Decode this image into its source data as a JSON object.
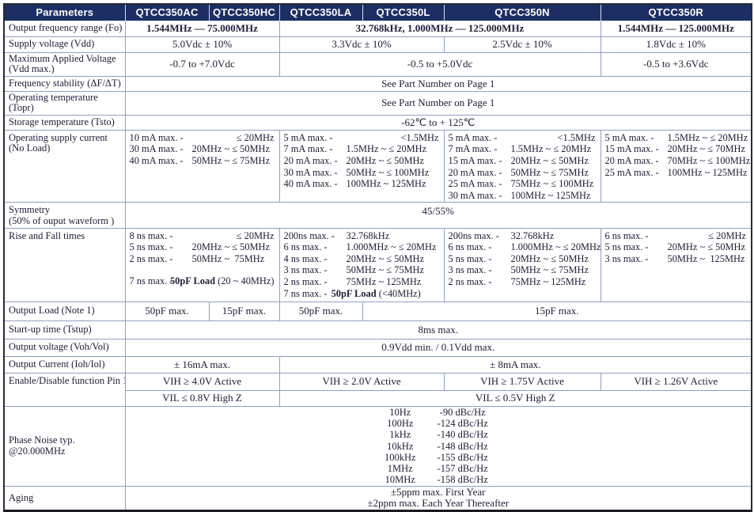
{
  "colors": {
    "header_bg": "#1c2e63",
    "header_text": "#ffffff",
    "grid_line": "#8fa0c4",
    "outer_border": "#2a2a33",
    "body_text": "#20203a"
  },
  "table": {
    "header": {
      "params": "Parameters",
      "cols": [
        "QTCC350AC",
        "QTCC350HC",
        "QTCC350LA",
        "QTCC350L",
        "QTCC350N",
        "QTCC350R"
      ]
    },
    "freq": {
      "label": "Output frequency range (Fo)",
      "v1": "1.544MHz — 75.000MHz",
      "v2": "32.768kHz, 1.000MHz — 125.000MHz",
      "v3": "1.544MHz — 125.000MHz"
    },
    "vdd": {
      "label": "Supply voltage (Vdd)",
      "v1": "5.0Vdc ± 10%",
      "v2": "3.3Vdc ± 10%",
      "v3": "2.5Vdc ± 10%",
      "v4": "1.8Vdc ± 10%"
    },
    "vmax": {
      "label1": "Maximum Applied Voltage",
      "label2": "(Vdd max.)",
      "v1": "-0.7 to +7.0Vdc",
      "v2": "-0.5 to +5.0Vdc",
      "v3": "-0.5 to +3.6Vdc"
    },
    "stab": {
      "label": "Frequency stability (ΔF/ΔT)",
      "v": "See Part Number on Page 1"
    },
    "topr": {
      "label": "Operating temperature (Topr)",
      "v": "See Part Number on Page 1"
    },
    "tsto": {
      "label": "Storage temperature (Tsto)",
      "v": "-62℃ to + 125℃"
    },
    "cur": {
      "label1": "Operating supply current",
      "label2": "(No Load)",
      "ac_hc": [
        {
          "a": "10 mA max. -",
          "r": "≤ 20MHz",
          "ra": true
        },
        {
          "a": "30 mA max. -",
          "r": "20MHz ~ ≤ 50MHz"
        },
        {
          "a": "40 mA max. -",
          "r": "50MHz ~ ≤ 75MHz"
        }
      ],
      "la_l": [
        {
          "a": "5 mA max. -",
          "r": "<1.5MHz",
          "ra": true
        },
        {
          "a": "7 mA max. -",
          "r": "1.5MHz ~ ≤ 20MHz"
        },
        {
          "a": "20 mA max. -",
          "r": "20MHz ~ ≤ 50MHz"
        },
        {
          "a": "30 mA max. -",
          "r": "50MHz ~ ≤ 100MHz"
        },
        {
          "a": "40 mA max. -",
          "r": "100MHz ~ 125MHz"
        }
      ],
      "n": [
        {
          "a": "5 mA max. -",
          "r": "<1.5MHz",
          "ra": true
        },
        {
          "a": "7 mA max. -",
          "r": "1.5MHz ~ ≤ 20MHz"
        },
        {
          "a": "15 mA max. -",
          "r": "20MHz ~ ≤ 50MHz"
        },
        {
          "a": "20 mA max. -",
          "r": "50MHz ~ ≤ 75MHz"
        },
        {
          "a": "25 mA max. -",
          "r": "75MHz ~ ≤ 100MHz"
        },
        {
          "a": "30 mA max. -",
          "r": "100MHz ~ 125MHz"
        }
      ],
      "r": [
        {
          "a": "5 mA max. -",
          "r": "1.5MHz ~ ≤ 20MHz"
        },
        {
          "a": "15 mA max. -",
          "r": "20MHz ~ ≤ 70MHz"
        },
        {
          "a": "20 mA max. -",
          "r": "70MHz ~ ≤ 100MHz"
        },
        {
          "a": "25 mA max. -",
          "r": "100MHz ~ 125MHz"
        }
      ]
    },
    "sym": {
      "label1": "Symmetry",
      "label2": "(50% of ouput waveform )",
      "v": "45/55%"
    },
    "rf": {
      "label": "Rise and Fall times",
      "ac_hc": [
        {
          "a": "8 ns max. -",
          "r": "≤ 20MHz",
          "ra": true
        },
        {
          "a": "5 ns max. -",
          "r": "20MHz ~ ≤ 50MHz"
        },
        {
          "a": "2 ns max. -",
          "r": "50MHz ~  75MHz"
        },
        {
          "gap": true
        },
        {
          "a": "7 ns max. -",
          "rb": "50pF Load",
          "r": " (20 ~ 40MHz)"
        }
      ],
      "la_l": [
        {
          "a": "200ns max. -",
          "r": "32.768kHz"
        },
        {
          "a": "6 ns max. -",
          "r": "1.000MHz ~ ≤ 20MHz"
        },
        {
          "a": "4 ns max. -",
          "r": "20MHz ~ ≤ 50MHz"
        },
        {
          "a": "3 ns max. -",
          "r": "50MHz ~ ≤ 75MHz"
        },
        {
          "a": "2 ns max. -",
          "r": "75MHz ~ 125MHz"
        },
        {
          "a": "7 ns max. -",
          "rb": "50pF Load",
          "r": " (<40MHz)"
        }
      ],
      "n": [
        {
          "a": "200ns max. -",
          "r": "32.768kHz"
        },
        {
          "a": "6 ns max. -",
          "r": "1.000MHz ~ ≤ 20MHz"
        },
        {
          "a": "5 ns max. -",
          "r": "20MHz ~ ≤ 50MHz"
        },
        {
          "a": "3 ns max. -",
          "r": "50MHz ~ ≤ 75MHz"
        },
        {
          "a": "2 ns max. -",
          "r": "75MHz ~ 125MHz"
        }
      ],
      "r": [
        {
          "a": "6 ns max. -",
          "r": "≤ 20MHz",
          "ra": true
        },
        {
          "a": "5 ns max. -",
          "r": "20MHz ~ ≤ 50MHz"
        },
        {
          "a": "3 ns max. -",
          "r": "50MHz ~  125MHz"
        }
      ]
    },
    "load": {
      "label": "Output Load (Note 1)",
      "v1": "50pF max.",
      "v2": "15pF max.",
      "v3": "50pF max.",
      "v4": "15pF max."
    },
    "tstup": {
      "label": "Start-up time (Tstup)",
      "v": "8ms max."
    },
    "vout": {
      "label": "Output voltage (Voh/Vol)",
      "v": "0.9Vdd min. / 0.1Vdd max."
    },
    "iout": {
      "label": "Output Current (Ioh/Iol)",
      "v1": "± 16mA max.",
      "v2": "± 8mA max."
    },
    "en": {
      "label": "Enable/Disable function Pin 1",
      "vih1": "VIH ≥ 4.0V Active",
      "vih2": "VIH ≥ 2.0V Active",
      "vih3": "VIH ≥ 1.75V Active",
      "vih4": "VIH ≥ 1.26V Active",
      "vil1": "VIL ≤ 0.8V High Z",
      "vil2": "VIL ≤ 0.5V High Z"
    },
    "pn": {
      "label1": "Phase Noise typ.",
      "label2": "@20.000MHz",
      "pairs": [
        {
          "a": "10Hz",
          "r": "-90 dBc/Hz"
        },
        {
          "a": "100Hz",
          "r": "-124 dBc/Hz"
        },
        {
          "a": "1kHz",
          "r": "-140 dBc/Hz"
        },
        {
          "a": "10kHz",
          "r": "-148 dBc/Hz"
        },
        {
          "a": "100kHz",
          "r": "-155 dBc/Hz"
        },
        {
          "a": "1MHz",
          "r": "-157 dBc/Hz"
        },
        {
          "a": "10MHz",
          "r": "-158 dBc/Hz"
        }
      ]
    },
    "aging": {
      "label": "Aging",
      "line1": "±5ppm max. First Year",
      "line2": "±2ppm max. Each Year Thereafter"
    }
  }
}
